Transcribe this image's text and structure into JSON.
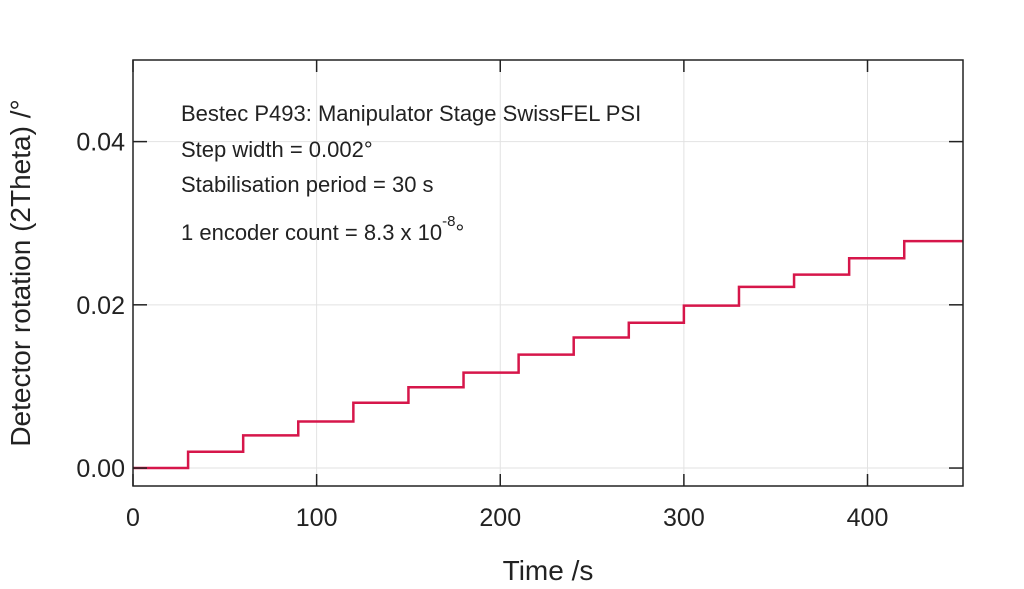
{
  "chart_data": {
    "type": "line",
    "title": "",
    "xlabel": "Time /s",
    "ylabel": "Detector rotation (2Theta) /°",
    "xlim": [
      0,
      452
    ],
    "ylim": [
      -0.0022,
      0.05
    ],
    "x_ticks": [
      0,
      100,
      200,
      300,
      400
    ],
    "x_tick_labels": [
      "0",
      "100",
      "200",
      "300",
      "400"
    ],
    "y_ticks": [
      0.0,
      0.02,
      0.04
    ],
    "y_tick_labels": [
      "0.00",
      "0.02",
      "0.04"
    ],
    "grid": true,
    "line_color": "#d6164a",
    "annotations": [
      "Bestec P493: Manipulator Stage SwissFEL PSI",
      "Step width = 0.002°",
      "Stabilisation period = 30 s"
    ],
    "encoder_note": {
      "prefix": "1 encoder count =  8.3 x 10",
      "exponent": "-8",
      "suffix": "°"
    },
    "series": [
      {
        "step_times": [
          0,
          30,
          60,
          90,
          120,
          150,
          180,
          210,
          240,
          270,
          300,
          330,
          360,
          390,
          420,
          452
        ],
        "levels": [
          0.0,
          0.002,
          0.004,
          0.0057,
          0.008,
          0.0099,
          0.0117,
          0.0139,
          0.016,
          0.0178,
          0.0199,
          0.0222,
          0.0237,
          0.0257,
          0.0278
        ]
      }
    ]
  }
}
